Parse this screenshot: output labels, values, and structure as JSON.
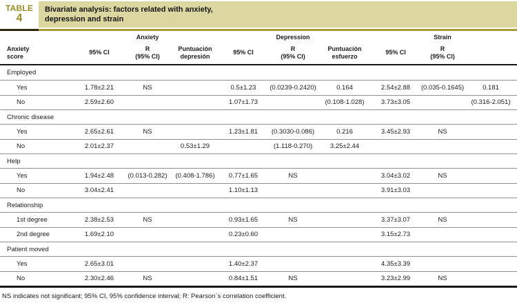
{
  "header": {
    "table_word": "TABLE",
    "table_number": "4",
    "title_line1": "Bivariate analysis: factors related with anxiety,",
    "title_line2": "depression and strain"
  },
  "table": {
    "group_headers": [
      "Anxiety",
      "Depression",
      "Strain"
    ],
    "column_headers": [
      {
        "lines": [
          "Anxiety",
          "score"
        ]
      },
      {
        "lines": [
          "95% CI"
        ]
      },
      {
        "lines": [
          "R",
          "(95% CI)"
        ]
      },
      {
        "lines": [
          "Puntuación",
          "depresión"
        ]
      },
      {
        "lines": [
          "95% CI"
        ]
      },
      {
        "lines": [
          "R",
          "(95% CI)"
        ]
      },
      {
        "lines": [
          "Puntuación",
          "esfuerzo"
        ]
      },
      {
        "lines": [
          "95% CI"
        ]
      },
      {
        "lines": [
          "R",
          "(95% CI)"
        ]
      },
      {
        "lines": [
          ""
        ]
      }
    ],
    "sections": [
      {
        "name": "Employed",
        "rows": [
          {
            "label": "Yes",
            "cells": [
              "1.78±2.21",
              "NS",
              "",
              "0.5±1.23",
              "(0.0239-0.2420)",
              "0.164",
              "2.54±2.88",
              "(0.035-0.1645)",
              "0.181"
            ]
          },
          {
            "label": "No",
            "cells": [
              "2.59±2.60",
              "",
              "",
              "1.07±1.73",
              "",
              "(0.108-1.028)",
              "3.73±3.05",
              "",
              "(0.316-2.051)"
            ]
          }
        ]
      },
      {
        "name": "Chronic disease",
        "rows": [
          {
            "label": "Yes",
            "cells": [
              "2.65±2.61",
              "NS",
              "",
              "1.23±1.81",
              "(0.3030-0.086)",
              "0.216",
              "3.45±2.93",
              "NS",
              ""
            ]
          },
          {
            "label": "No",
            "cells": [
              "2.01±2.37",
              "",
              "0.53±1.29",
              "",
              "(1.118-0.270)",
              "3.25±2.44",
              "",
              "",
              ""
            ]
          }
        ]
      },
      {
        "name": "Help",
        "rows": [
          {
            "label": "Yes",
            "cells": [
              "1.94±2.48",
              "(0.013-0.282)",
              "(0.408-1.786)",
              "0.77±1.65",
              "NS",
              "",
              "3.04±3.02",
              "NS",
              ""
            ]
          },
          {
            "label": "No",
            "cells": [
              "3.04±2.41",
              "",
              "",
              "1.10±1.13",
              "",
              "",
              "3.91±3.03",
              "",
              ""
            ]
          }
        ]
      },
      {
        "name": "Relationship",
        "rows": [
          {
            "label": "1st degree",
            "cells": [
              "2.38±2.53",
              "NS",
              "",
              "0.93±1.65",
              "NS",
              "",
              "3.37±3.07",
              "NS",
              ""
            ]
          },
          {
            "label": "2nd degree",
            "cells": [
              "1.69±2.10",
              "",
              "",
              "0.23±0.60",
              "",
              "",
              "3.15±2.73",
              "",
              ""
            ]
          }
        ]
      },
      {
        "name": "Patient moved",
        "rows": [
          {
            "label": "Yes",
            "cells": [
              "2.65±3.01",
              "",
              "",
              "1.40±2.37",
              "",
              "",
              "4.35±3.39",
              "",
              ""
            ]
          },
          {
            "label": "No",
            "cells": [
              "2.30±2.46",
              "NS",
              "",
              "0.84±1.51",
              "NS",
              "",
              "3.23±2.99",
              "NS",
              ""
            ]
          }
        ]
      }
    ]
  },
  "footnote": "NS indicates not significant; 95% CI, 95% confidence interval; R: Pearson´s correlation coefficient.",
  "colors": {
    "olive_rule": "#a89b2f",
    "beige_band": "#dcd6a0",
    "gold_label": "#9a8c21",
    "dark_rule": "#161616"
  }
}
